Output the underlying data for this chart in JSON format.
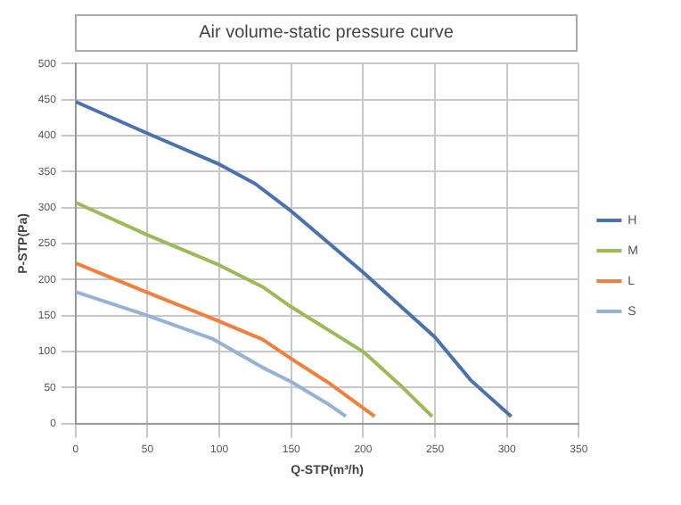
{
  "chart_data": {
    "type": "line",
    "title": "Air volume-static pressure curve",
    "xlabel": "Q-STP(m³/h)",
    "ylabel": "P-STP(Pa)",
    "xlim": [
      0,
      350
    ],
    "xticks": [
      0,
      50,
      100,
      150,
      200,
      250,
      300,
      350
    ],
    "ylim": [
      0,
      500
    ],
    "yticks": [
      0,
      50,
      100,
      150,
      200,
      250,
      300,
      350,
      400,
      450,
      500
    ],
    "grid": true,
    "legend": "right",
    "marker": "none",
    "line_style": "solid",
    "series": [
      {
        "name": "H",
        "color": "#4a72b0",
        "x": [
          0,
          50,
          100,
          125,
          150,
          200,
          250,
          275,
          303
        ],
        "values": [
          447,
          403,
          360,
          333,
          295,
          210,
          120,
          60,
          10
        ]
      },
      {
        "name": "M",
        "color": "#9bbb59",
        "x": [
          0,
          50,
          100,
          130,
          150,
          200,
          225,
          248
        ],
        "values": [
          307,
          262,
          220,
          190,
          162,
          100,
          55,
          10
        ]
      },
      {
        "name": "L",
        "color": "#f0803c",
        "x": [
          0,
          50,
          100,
          130,
          150,
          175,
          208
        ],
        "values": [
          223,
          182,
          142,
          117,
          90,
          58,
          10
        ]
      },
      {
        "name": "S",
        "color": "#95b3d7",
        "x": [
          0,
          50,
          95,
          130,
          150,
          175,
          188
        ],
        "values": [
          183,
          150,
          118,
          78,
          58,
          28,
          10
        ]
      }
    ]
  }
}
